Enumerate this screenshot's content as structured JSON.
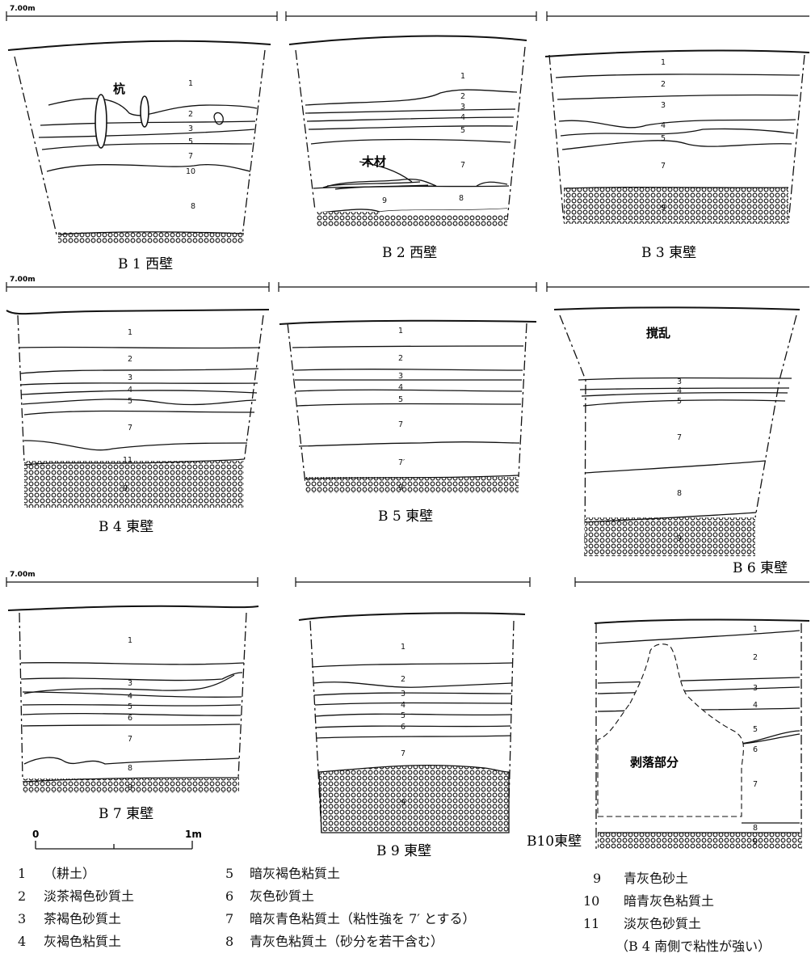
{
  "elevation_label": "7.00m",
  "panels": [
    {
      "id": "B1",
      "caption": "B 1 西壁",
      "layers": [
        "1",
        "2",
        "3",
        "5",
        "7",
        "10",
        "8"
      ],
      "annotation": "杭"
    },
    {
      "id": "B2",
      "caption": "B 2 西壁",
      "layers": [
        "1",
        "2",
        "3",
        "4",
        "5",
        "7",
        "8",
        "9"
      ],
      "annotation": "木材"
    },
    {
      "id": "B3",
      "caption": "B 3 東壁",
      "layers": [
        "1",
        "2",
        "3",
        "4",
        "5",
        "7",
        "9"
      ]
    },
    {
      "id": "B4",
      "caption": "B 4 東壁",
      "layers": [
        "1",
        "2",
        "3",
        "4",
        "5",
        "7",
        "11",
        "9"
      ]
    },
    {
      "id": "B5",
      "caption": "B 5 東壁",
      "layers": [
        "1",
        "2",
        "3",
        "4",
        "5",
        "7",
        "7′",
        "9"
      ]
    },
    {
      "id": "B6",
      "caption": "B 6 東壁",
      "layers": [
        "3",
        "4",
        "5",
        "7",
        "8",
        "9"
      ],
      "annotation": "撹乱"
    },
    {
      "id": "B7",
      "caption": "B 7 東壁",
      "layers": [
        "1",
        "3",
        "4",
        "5",
        "6",
        "7",
        "8",
        "9"
      ]
    },
    {
      "id": "B9",
      "caption": "B 9 東壁",
      "layers": [
        "1",
        "2",
        "3",
        "4",
        "5",
        "6",
        "7",
        "9"
      ]
    },
    {
      "id": "B10",
      "caption": "B10東壁",
      "layers": [
        "1",
        "2",
        "3",
        "4",
        "5",
        "6",
        "7",
        "8",
        "9"
      ],
      "annotation": "剥落部分"
    }
  ],
  "scale": {
    "zero": "0",
    "end": "1m"
  },
  "legend": [
    {
      "no": "1",
      "text": "（耕土）"
    },
    {
      "no": "2",
      "text": "淡茶褐色砂質土"
    },
    {
      "no": "3",
      "text": "茶褐色砂質土"
    },
    {
      "no": "4",
      "text": "灰褐色粘質土"
    },
    {
      "no": "5",
      "text": "暗灰褐色粘質土"
    },
    {
      "no": "6",
      "text": "灰色砂質土"
    },
    {
      "no": "7",
      "text": "暗灰青色粘質土（粘性強を 7′ とする）"
    },
    {
      "no": "8",
      "text": "青灰色粘質土（砂分を若干含む）"
    },
    {
      "no": "9",
      "text": "青灰色砂土"
    },
    {
      "no": "10",
      "text": "暗青灰色粘質土"
    },
    {
      "no": "11",
      "text": "淡灰色砂質土"
    },
    {
      "no": "",
      "text": "（B 4 南側で粘性が強い）"
    }
  ]
}
